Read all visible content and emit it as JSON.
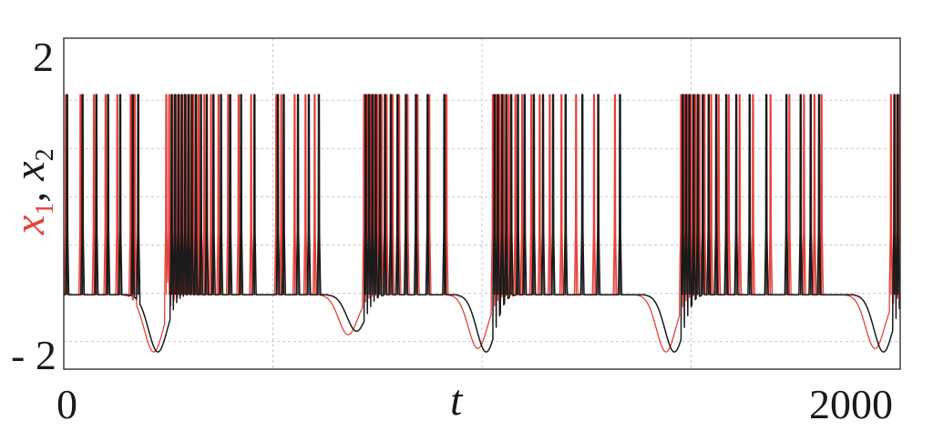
{
  "chart_data": {
    "type": "line",
    "title": "",
    "xlabel": "t",
    "ylabel_parts": [
      "x",
      "1",
      ", ",
      "x",
      "2"
    ],
    "xlim": [
      0,
      2000
    ],
    "ylim": [
      -2.4,
      2.4
    ],
    "x_tick_labels": [
      "0",
      "2000"
    ],
    "y_tick_labels": [
      "2",
      "- 2"
    ],
    "grid": true,
    "grid_x": [
      0,
      500,
      1000,
      1500,
      2000
    ],
    "grid_y": [
      -2,
      -1.3,
      -0.6,
      0.1,
      0.8,
      1.5
    ],
    "colors": {
      "x1": "#e8403a",
      "x2": "#1a1a1a"
    },
    "baseline": -1.32,
    "spike_peak": 1.58,
    "series": [
      {
        "key": "x1",
        "color": "#e8403a",
        "spikes": [
          5,
          40,
          72,
          100,
          128,
          160,
          170,
          245,
          252,
          260,
          268,
          276,
          284,
          292,
          300,
          310,
          322,
          336,
          352,
          370,
          393,
          418,
          448,
          508,
          520,
          552,
          578,
          600,
          718,
          726,
          734,
          742,
          750,
          760,
          772,
          786,
          802,
          822,
          846,
          874,
          915,
          1026,
          1034,
          1042,
          1052,
          1064,
          1080,
          1096,
          1118,
          1138,
          1162,
          1190,
          1225,
          1268,
          1318,
          1476,
          1484,
          1492,
          1500,
          1510,
          1520,
          1532,
          1548,
          1566,
          1590,
          1616,
          1648,
          1690,
          1735,
          1770,
          1795,
          1812,
          1978,
          1988,
          1998
        ],
        "troughs": [
          {
            "t": 215,
            "v": -2.15
          },
          {
            "t": 680,
            "v": -1.9
          },
          {
            "t": 990,
            "v": -2.1
          },
          {
            "t": 1440,
            "v": -2.15
          },
          {
            "t": 1940,
            "v": -2.1
          }
        ]
      },
      {
        "key": "x2",
        "color": "#1a1a1a",
        "spikes": [
          8,
          45,
          78,
          106,
          135,
          165,
          178,
          258,
          266,
          274,
          282,
          290,
          298,
          306,
          316,
          328,
          342,
          358,
          376,
          398,
          424,
          456,
          512,
          526,
          560,
          586,
          610,
          722,
          730,
          738,
          746,
          756,
          768,
          782,
          798,
          818,
          842,
          870,
          910,
          1030,
          1038,
          1048,
          1058,
          1070,
          1086,
          1102,
          1124,
          1146,
          1170,
          1200,
          1240,
          1278,
          1330,
          1480,
          1488,
          1496,
          1506,
          1516,
          1528,
          1542,
          1560,
          1584,
          1608,
          1640,
          1680,
          1728,
          1762,
          1786,
          1806,
          1986,
          1994
        ],
        "troughs": [
          {
            "t": 225,
            "v": -2.15
          },
          {
            "t": 700,
            "v": -1.85
          },
          {
            "t": 1010,
            "v": -2.15
          },
          {
            "t": 1460,
            "v": -2.15
          },
          {
            "t": 1960,
            "v": -2.15
          }
        ]
      }
    ]
  }
}
